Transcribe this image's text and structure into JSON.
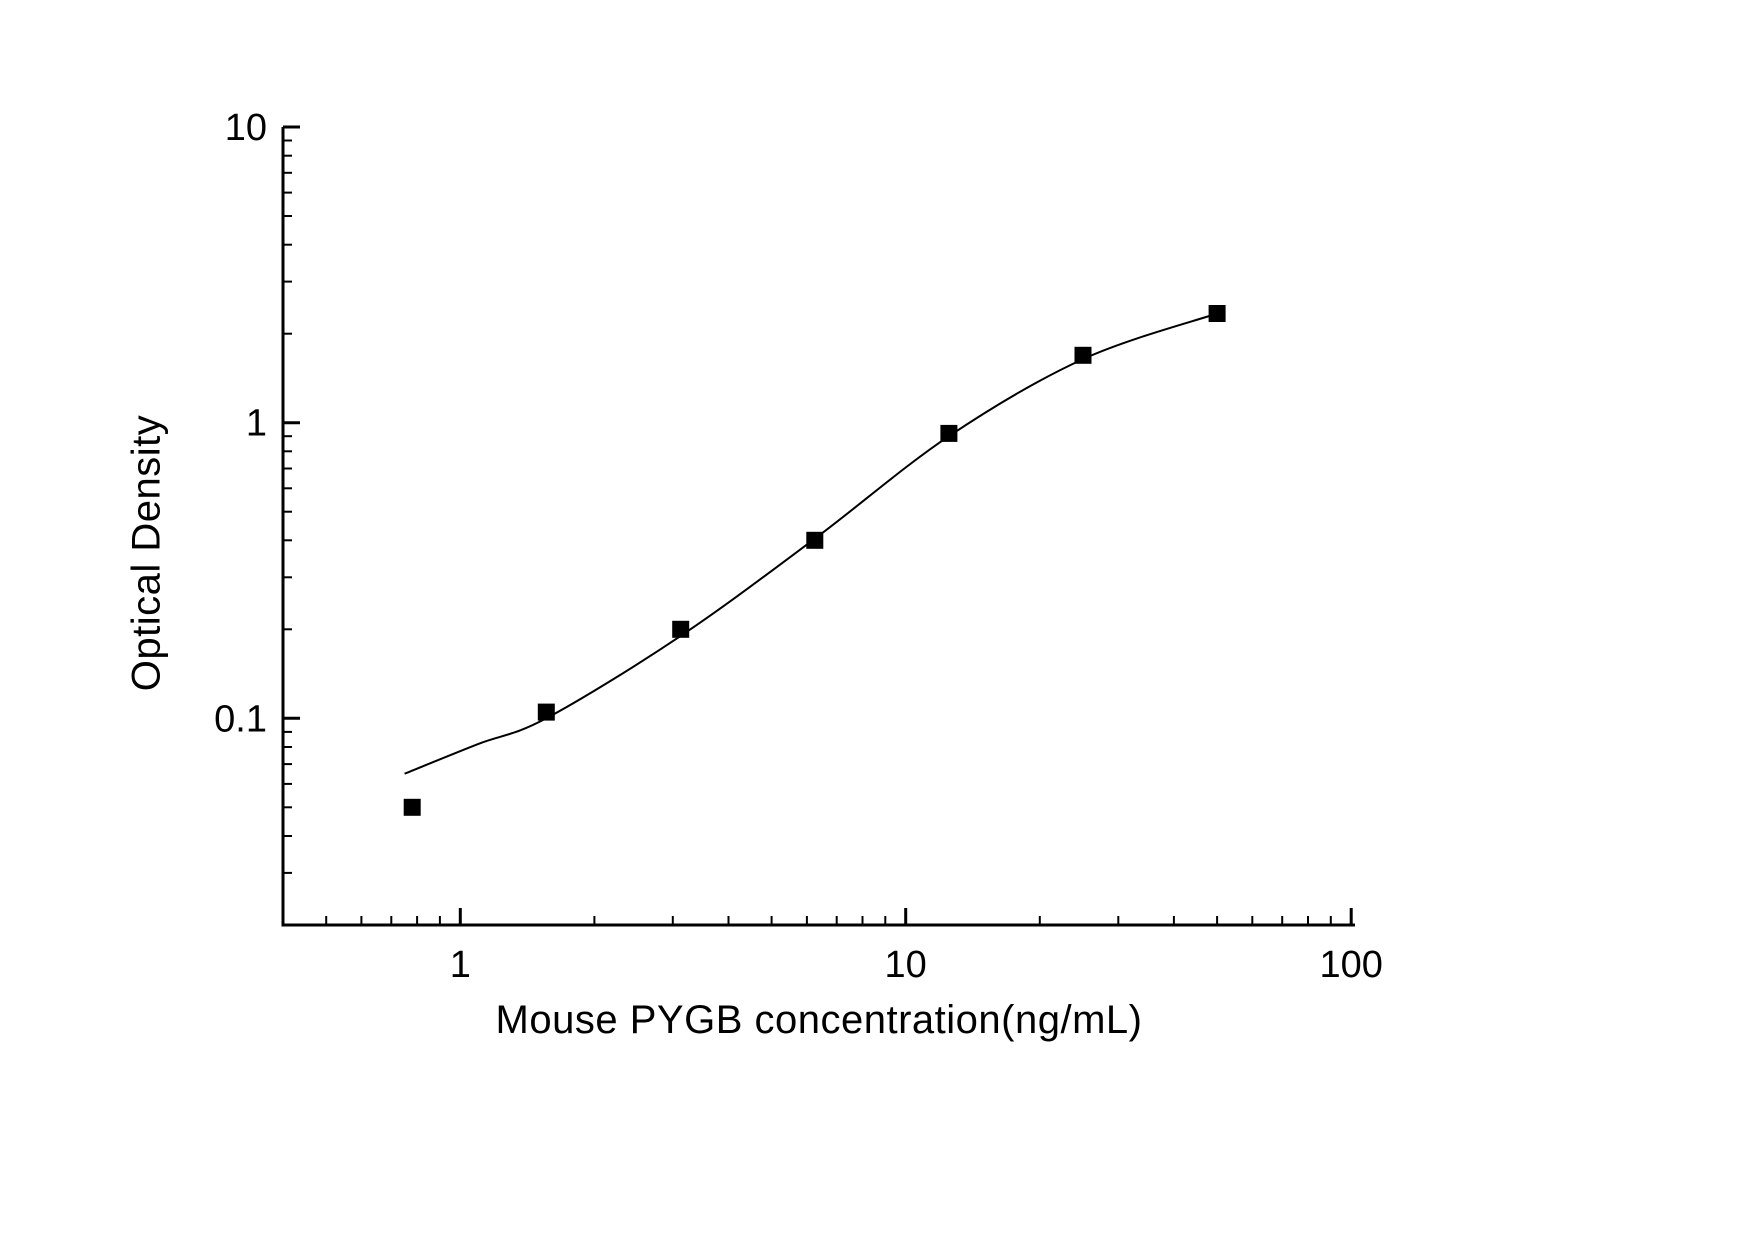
{
  "figure": {
    "background": "#ffffff",
    "axis_color": "#000000",
    "text_color": "#000000"
  },
  "chart_data": {
    "type": "scatter",
    "title": "",
    "xlabel": "Mouse PYGB concentration(ng/mL)",
    "ylabel": "Optical Density",
    "x_scale": "log",
    "y_scale": "log",
    "xlim": [
      0.4,
      102
    ],
    "ylim": [
      0.02,
      10
    ],
    "grid": false,
    "legend": null,
    "x_major_ticks": [
      {
        "value": 1,
        "label": "1"
      },
      {
        "value": 10,
        "label": "10"
      },
      {
        "value": 100,
        "label": "100"
      }
    ],
    "y_major_ticks": [
      {
        "value": 0.1,
        "label": "0.1"
      },
      {
        "value": 1,
        "label": "1"
      },
      {
        "value": 10,
        "label": "10"
      }
    ],
    "x_minor_ticks": [
      0.5,
      0.6,
      0.7,
      0.8,
      0.9,
      2,
      3,
      4,
      5,
      6,
      7,
      8,
      9,
      20,
      30,
      40,
      50,
      60,
      70,
      80,
      90
    ],
    "y_minor_ticks": [
      0.03,
      0.04,
      0.05,
      0.06,
      0.07,
      0.08,
      0.09,
      0.2,
      0.3,
      0.4,
      0.5,
      0.6,
      0.7,
      0.8,
      0.9,
      2,
      3,
      4,
      5,
      6,
      7,
      8,
      9
    ],
    "series": [
      {
        "name": "standard-points",
        "marker": "square",
        "marker_size": 17,
        "color": "#000000",
        "points": [
          {
            "x": 0.78,
            "y": 0.05
          },
          {
            "x": 1.56,
            "y": 0.105
          },
          {
            "x": 3.125,
            "y": 0.2
          },
          {
            "x": 6.25,
            "y": 0.4
          },
          {
            "x": 12.5,
            "y": 0.92
          },
          {
            "x": 25,
            "y": 1.69
          },
          {
            "x": 50,
            "y": 2.34
          }
        ]
      }
    ],
    "fit_curve": {
      "name": "standard-curve-fit",
      "color": "#000000",
      "points": [
        {
          "x": 0.75,
          "y": 0.065
        },
        {
          "x": 1.1,
          "y": 0.082
        },
        {
          "x": 1.56,
          "y": 0.1
        },
        {
          "x": 3.125,
          "y": 0.19
        },
        {
          "x": 6.25,
          "y": 0.405
        },
        {
          "x": 12.5,
          "y": 0.9
        },
        {
          "x": 25,
          "y": 1.64
        },
        {
          "x": 50,
          "y": 2.34
        }
      ]
    }
  }
}
